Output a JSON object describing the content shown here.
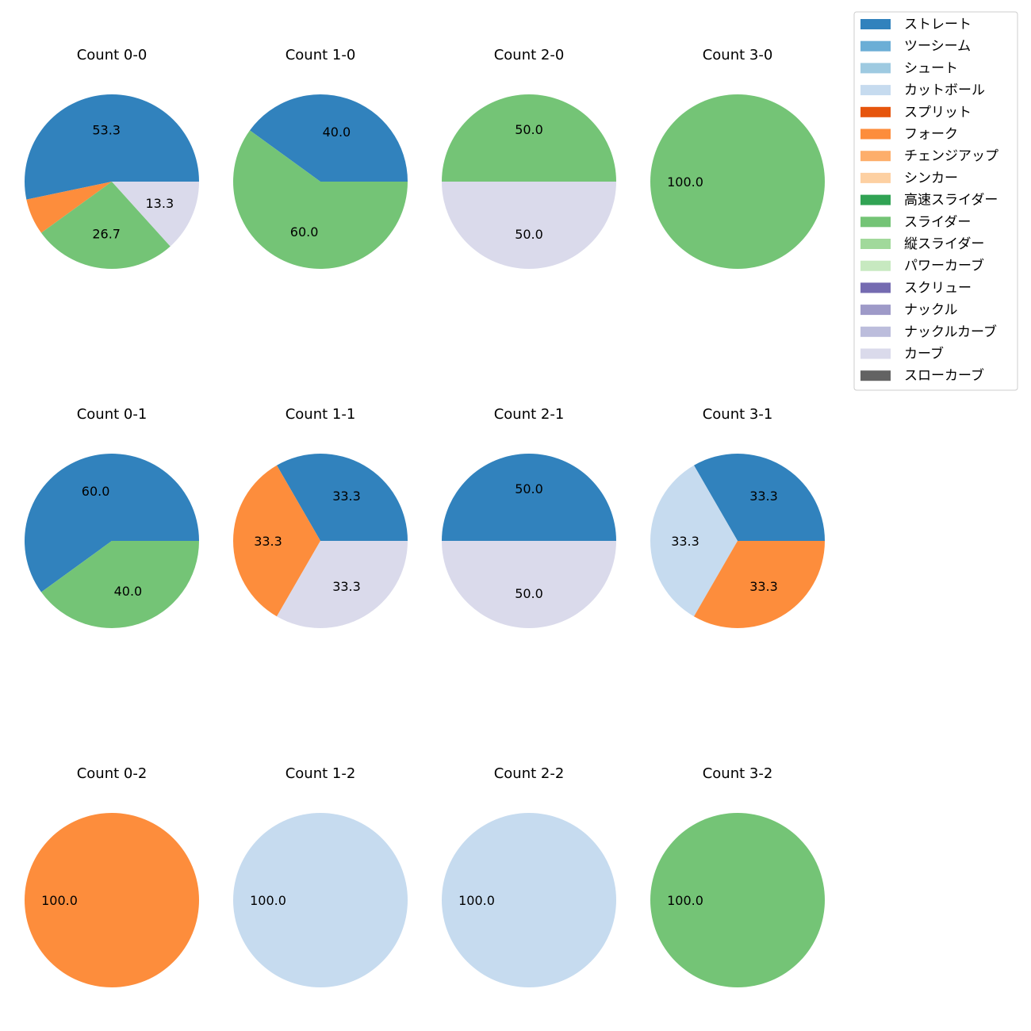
{
  "legend": [
    {
      "name": "ストレート",
      "color": "#3182bd"
    },
    {
      "name": "ツーシーム",
      "color": "#6baed6"
    },
    {
      "name": "シュート",
      "color": "#9ecae1"
    },
    {
      "name": "カットボール",
      "color": "#c6dbef"
    },
    {
      "name": "スプリット",
      "color": "#e6550d"
    },
    {
      "name": "フォーク",
      "color": "#fd8d3c"
    },
    {
      "name": "チェンジアップ",
      "color": "#fdae6b"
    },
    {
      "name": "シンカー",
      "color": "#fdd0a2"
    },
    {
      "name": "高速スライダー",
      "color": "#31a354"
    },
    {
      "name": "スライダー",
      "color": "#74c476"
    },
    {
      "name": "縦スライダー",
      "color": "#a1d99b"
    },
    {
      "name": "パワーカーブ",
      "color": "#c7e9c0"
    },
    {
      "name": "スクリュー",
      "color": "#756bb1"
    },
    {
      "name": "ナックル",
      "color": "#9e9ac8"
    },
    {
      "name": "ナックルカーブ",
      "color": "#bcbddc"
    },
    {
      "name": "カーブ",
      "color": "#dadaeb"
    },
    {
      "name": "スローカーブ",
      "color": "#636363"
    }
  ],
  "chart_data": [
    {
      "type": "pie",
      "title": "Count 0-0",
      "slices": [
        {
          "category": "ストレート",
          "value": 53.3,
          "label": "53.3"
        },
        {
          "category": "フォーク",
          "value": 6.7,
          "label": ""
        },
        {
          "category": "スライダー",
          "value": 26.7,
          "label": "26.7"
        },
        {
          "category": "カーブ",
          "value": 13.3,
          "label": "13.3"
        }
      ]
    },
    {
      "type": "pie",
      "title": "Count 1-0",
      "slices": [
        {
          "category": "ストレート",
          "value": 40.0,
          "label": "40.0"
        },
        {
          "category": "スライダー",
          "value": 60.0,
          "label": "60.0"
        }
      ]
    },
    {
      "type": "pie",
      "title": "Count 2-0",
      "slices": [
        {
          "category": "スライダー",
          "value": 50.0,
          "label": "50.0"
        },
        {
          "category": "カーブ",
          "value": 50.0,
          "label": "50.0"
        }
      ]
    },
    {
      "type": "pie",
      "title": "Count 3-0",
      "slices": [
        {
          "category": "スライダー",
          "value": 100.0,
          "label": "100.0"
        }
      ]
    },
    {
      "type": "pie",
      "title": "Count 0-1",
      "slices": [
        {
          "category": "ストレート",
          "value": 60.0,
          "label": "60.0"
        },
        {
          "category": "スライダー",
          "value": 40.0,
          "label": "40.0"
        }
      ]
    },
    {
      "type": "pie",
      "title": "Count 1-1",
      "slices": [
        {
          "category": "ストレート",
          "value": 33.3,
          "label": "33.3"
        },
        {
          "category": "フォーク",
          "value": 33.3,
          "label": "33.3"
        },
        {
          "category": "カーブ",
          "value": 33.3,
          "label": "33.3"
        }
      ]
    },
    {
      "type": "pie",
      "title": "Count 2-1",
      "slices": [
        {
          "category": "ストレート",
          "value": 50.0,
          "label": "50.0"
        },
        {
          "category": "カーブ",
          "value": 50.0,
          "label": "50.0"
        }
      ]
    },
    {
      "type": "pie",
      "title": "Count 3-1",
      "slices": [
        {
          "category": "ストレート",
          "value": 33.3,
          "label": "33.3"
        },
        {
          "category": "カットボール",
          "value": 33.3,
          "label": "33.3"
        },
        {
          "category": "フォーク",
          "value": 33.3,
          "label": "33.3"
        }
      ]
    },
    {
      "type": "pie",
      "title": "Count 0-2",
      "slices": [
        {
          "category": "フォーク",
          "value": 100.0,
          "label": "100.0"
        }
      ]
    },
    {
      "type": "pie",
      "title": "Count 1-2",
      "slices": [
        {
          "category": "カットボール",
          "value": 100.0,
          "label": "100.0"
        }
      ]
    },
    {
      "type": "pie",
      "title": "Count 2-2",
      "slices": [
        {
          "category": "カットボール",
          "value": 100.0,
          "label": "100.0"
        }
      ]
    },
    {
      "type": "pie",
      "title": "Count 3-2",
      "slices": [
        {
          "category": "スライダー",
          "value": 100.0,
          "label": "100.0"
        }
      ]
    }
  ]
}
